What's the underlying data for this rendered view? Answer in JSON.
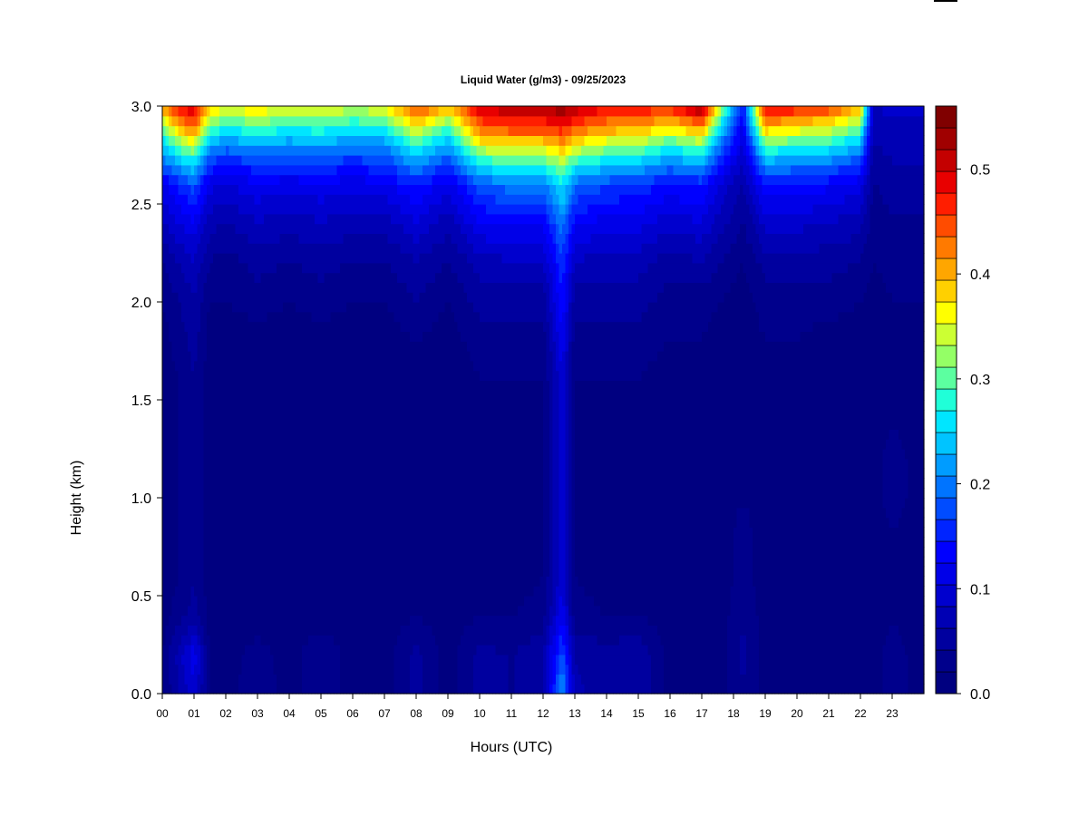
{
  "colors": {
    "background": "#ffffff",
    "scale": [
      "#000080",
      "#00008c",
      "#00009f",
      "#0000b4",
      "#0000ce",
      "#0000e8",
      "#0000ff",
      "#0024ff",
      "#004cff",
      "#0074ff",
      "#009cff",
      "#00c4ff",
      "#00e6ff",
      "#20ffd8",
      "#5cffa0",
      "#94ff66",
      "#ccff33",
      "#ffff00",
      "#ffd000",
      "#ffa600",
      "#ff7a00",
      "#ff4c00",
      "#ff1e00",
      "#e80000",
      "#c40000",
      "#a00000",
      "#800000"
    ]
  },
  "chart_data": {
    "type": "heatmap",
    "title": "Liquid Water (g/m3) - 09/25/2023",
    "xlabel": "Hours (UTC)",
    "ylabel": "Height (km)",
    "xlim": [
      0,
      24
    ],
    "ylim": [
      0.0,
      3.0
    ],
    "x_ticks": [
      "00",
      "01",
      "02",
      "03",
      "04",
      "05",
      "06",
      "07",
      "08",
      "09",
      "10",
      "11",
      "12",
      "13",
      "14",
      "15",
      "16",
      "17",
      "18",
      "19",
      "20",
      "21",
      "22",
      "23"
    ],
    "y_ticks": [
      "0.0",
      "0.5",
      "1.0",
      "1.5",
      "2.0",
      "2.5",
      "3.0"
    ],
    "colorbar": {
      "range": [
        0.0,
        0.56
      ],
      "ticks": [
        "0.0",
        "0.1",
        "0.2",
        "0.3",
        "0.4",
        "0.5"
      ],
      "tick_values": [
        0.0,
        0.1,
        0.2,
        0.3,
        0.4,
        0.5
      ]
    },
    "heights_km": [
      0.0,
      0.2,
      0.4,
      0.6,
      0.8,
      1.0,
      1.2,
      1.4,
      1.6,
      1.8,
      2.0,
      2.2,
      2.4,
      2.6,
      2.7,
      2.8,
      2.9,
      3.0
    ],
    "columns": [
      {
        "hour": 0.0,
        "values": [
          0.02,
          0.02,
          0.01,
          0.01,
          0.01,
          0.01,
          0.01,
          0.01,
          0.01,
          0.01,
          0.02,
          0.04,
          0.08,
          0.12,
          0.18,
          0.24,
          0.32,
          0.42
        ]
      },
      {
        "hour": 0.5,
        "values": [
          0.06,
          0.07,
          0.03,
          0.02,
          0.02,
          0.02,
          0.02,
          0.02,
          0.02,
          0.03,
          0.04,
          0.06,
          0.1,
          0.15,
          0.22,
          0.3,
          0.4,
          0.48
        ]
      },
      {
        "hour": 1.0,
        "values": [
          0.1,
          0.12,
          0.05,
          0.04,
          0.04,
          0.04,
          0.04,
          0.04,
          0.04,
          0.05,
          0.06,
          0.08,
          0.12,
          0.18,
          0.25,
          0.34,
          0.44,
          0.5
        ]
      },
      {
        "hour": 1.5,
        "values": [
          0.02,
          0.02,
          0.01,
          0.01,
          0.01,
          0.01,
          0.01,
          0.01,
          0.01,
          0.01,
          0.02,
          0.04,
          0.07,
          0.11,
          0.16,
          0.22,
          0.3,
          0.4
        ]
      },
      {
        "hour": 2.0,
        "values": [
          0.01,
          0.01,
          0.01,
          0.01,
          0.01,
          0.01,
          0.01,
          0.01,
          0.01,
          0.01,
          0.02,
          0.03,
          0.06,
          0.1,
          0.14,
          0.2,
          0.28,
          0.36
        ]
      },
      {
        "hour": 3.0,
        "values": [
          0.04,
          0.03,
          0.01,
          0.01,
          0.01,
          0.01,
          0.01,
          0.01,
          0.01,
          0.01,
          0.03,
          0.05,
          0.08,
          0.12,
          0.16,
          0.22,
          0.3,
          0.38
        ]
      },
      {
        "hour": 4.0,
        "values": [
          0.01,
          0.01,
          0.01,
          0.01,
          0.01,
          0.01,
          0.01,
          0.01,
          0.01,
          0.01,
          0.02,
          0.04,
          0.07,
          0.11,
          0.16,
          0.21,
          0.28,
          0.35
        ]
      },
      {
        "hour": 5.0,
        "values": [
          0.04,
          0.04,
          0.01,
          0.01,
          0.01,
          0.01,
          0.01,
          0.01,
          0.01,
          0.01,
          0.03,
          0.05,
          0.08,
          0.12,
          0.16,
          0.22,
          0.29,
          0.37
        ]
      },
      {
        "hour": 6.0,
        "values": [
          0.01,
          0.01,
          0.01,
          0.01,
          0.01,
          0.01,
          0.01,
          0.01,
          0.01,
          0.01,
          0.02,
          0.04,
          0.07,
          0.11,
          0.15,
          0.2,
          0.27,
          0.34
        ]
      },
      {
        "hour": 7.0,
        "values": [
          0.01,
          0.01,
          0.01,
          0.01,
          0.01,
          0.01,
          0.01,
          0.01,
          0.01,
          0.01,
          0.02,
          0.04,
          0.07,
          0.12,
          0.16,
          0.21,
          0.28,
          0.36
        ]
      },
      {
        "hour": 8.0,
        "values": [
          0.05,
          0.05,
          0.02,
          0.01,
          0.01,
          0.01,
          0.01,
          0.01,
          0.01,
          0.02,
          0.04,
          0.06,
          0.1,
          0.15,
          0.21,
          0.28,
          0.37,
          0.46
        ]
      },
      {
        "hour": 9.0,
        "values": [
          0.01,
          0.01,
          0.01,
          0.01,
          0.01,
          0.01,
          0.01,
          0.01,
          0.01,
          0.01,
          0.02,
          0.04,
          0.07,
          0.11,
          0.16,
          0.22,
          0.3,
          0.4
        ]
      },
      {
        "hour": 10.0,
        "values": [
          0.05,
          0.05,
          0.02,
          0.01,
          0.01,
          0.01,
          0.01,
          0.01,
          0.02,
          0.03,
          0.05,
          0.07,
          0.12,
          0.18,
          0.26,
          0.35,
          0.44,
          0.5
        ]
      },
      {
        "hour": 11.0,
        "values": [
          0.04,
          0.04,
          0.02,
          0.01,
          0.01,
          0.01,
          0.01,
          0.01,
          0.02,
          0.03,
          0.05,
          0.08,
          0.13,
          0.2,
          0.28,
          0.37,
          0.46,
          0.52
        ]
      },
      {
        "hour": 12.0,
        "values": [
          0.06,
          0.06,
          0.03,
          0.02,
          0.02,
          0.02,
          0.02,
          0.02,
          0.02,
          0.03,
          0.05,
          0.08,
          0.13,
          0.2,
          0.28,
          0.37,
          0.46,
          0.52
        ]
      },
      {
        "hour": 12.6,
        "values": [
          0.22,
          0.18,
          0.12,
          0.1,
          0.1,
          0.1,
          0.1,
          0.1,
          0.1,
          0.12,
          0.14,
          0.16,
          0.2,
          0.26,
          0.32,
          0.4,
          0.48,
          0.54
        ]
      },
      {
        "hour": 13.0,
        "values": [
          0.07,
          0.06,
          0.03,
          0.02,
          0.02,
          0.02,
          0.02,
          0.02,
          0.02,
          0.03,
          0.05,
          0.08,
          0.13,
          0.19,
          0.27,
          0.36,
          0.45,
          0.52
        ]
      },
      {
        "hour": 14.0,
        "values": [
          0.05,
          0.05,
          0.02,
          0.01,
          0.01,
          0.01,
          0.01,
          0.01,
          0.02,
          0.03,
          0.05,
          0.07,
          0.11,
          0.17,
          0.24,
          0.33,
          0.42,
          0.48
        ]
      },
      {
        "hour": 15.0,
        "values": [
          0.06,
          0.06,
          0.02,
          0.01,
          0.01,
          0.01,
          0.01,
          0.01,
          0.02,
          0.03,
          0.05,
          0.07,
          0.11,
          0.16,
          0.23,
          0.32,
          0.41,
          0.48
        ]
      },
      {
        "hour": 16.0,
        "values": [
          0.01,
          0.01,
          0.01,
          0.01,
          0.01,
          0.01,
          0.01,
          0.01,
          0.01,
          0.02,
          0.03,
          0.05,
          0.09,
          0.14,
          0.2,
          0.28,
          0.38,
          0.47
        ]
      },
      {
        "hour": 17.0,
        "values": [
          0.01,
          0.01,
          0.01,
          0.01,
          0.01,
          0.01,
          0.01,
          0.01,
          0.01,
          0.02,
          0.03,
          0.06,
          0.1,
          0.15,
          0.22,
          0.31,
          0.42,
          0.54
        ]
      },
      {
        "hour": 17.6,
        "values": [
          0.01,
          0.01,
          0.01,
          0.01,
          0.01,
          0.01,
          0.01,
          0.01,
          0.01,
          0.01,
          0.02,
          0.04,
          0.07,
          0.1,
          0.14,
          0.19,
          0.26,
          0.34
        ]
      },
      {
        "hour": 18.3,
        "values": [
          0.04,
          0.05,
          0.04,
          0.03,
          0.03,
          0.02,
          0.01,
          0.01,
          0.01,
          0.01,
          0.01,
          0.02,
          0.04,
          0.06,
          0.08,
          0.1,
          0.12,
          0.14
        ]
      },
      {
        "hour": 19.0,
        "values": [
          0.01,
          0.01,
          0.01,
          0.01,
          0.01,
          0.01,
          0.01,
          0.01,
          0.01,
          0.02,
          0.03,
          0.05,
          0.09,
          0.14,
          0.21,
          0.3,
          0.4,
          0.5
        ]
      },
      {
        "hour": 20.0,
        "values": [
          0.01,
          0.01,
          0.01,
          0.01,
          0.01,
          0.01,
          0.01,
          0.01,
          0.01,
          0.02,
          0.03,
          0.05,
          0.09,
          0.14,
          0.2,
          0.28,
          0.38,
          0.48
        ]
      },
      {
        "hour": 21.0,
        "values": [
          0.01,
          0.01,
          0.01,
          0.01,
          0.01,
          0.01,
          0.01,
          0.01,
          0.01,
          0.01,
          0.03,
          0.05,
          0.08,
          0.13,
          0.19,
          0.27,
          0.36,
          0.46
        ]
      },
      {
        "hour": 22.0,
        "values": [
          0.02,
          0.02,
          0.01,
          0.01,
          0.01,
          0.01,
          0.01,
          0.01,
          0.01,
          0.01,
          0.02,
          0.04,
          0.07,
          0.11,
          0.16,
          0.23,
          0.31,
          0.4
        ]
      },
      {
        "hour": 22.4,
        "values": [
          0.01,
          0.01,
          0.01,
          0.01,
          0.01,
          0.01,
          0.01,
          0.01,
          0.01,
          0.01,
          0.01,
          0.02,
          0.03,
          0.04,
          0.05,
          0.06,
          0.07,
          0.08
        ]
      },
      {
        "hour": 23.0,
        "values": [
          0.03,
          0.03,
          0.02,
          0.02,
          0.02,
          0.03,
          0.03,
          0.02,
          0.02,
          0.02,
          0.02,
          0.03,
          0.04,
          0.05,
          0.06,
          0.07,
          0.08,
          0.09
        ]
      },
      {
        "hour": 24.0,
        "values": [
          0.01,
          0.01,
          0.01,
          0.01,
          0.01,
          0.01,
          0.01,
          0.01,
          0.01,
          0.01,
          0.02,
          0.03,
          0.04,
          0.05,
          0.06,
          0.07,
          0.08,
          0.09
        ]
      }
    ]
  }
}
